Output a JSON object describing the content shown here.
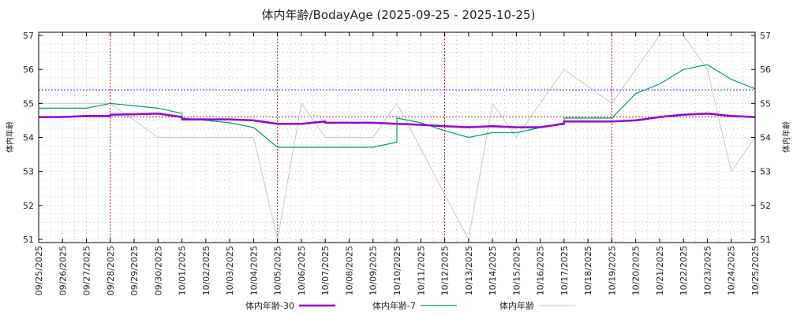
{
  "chart_data": {
    "type": "line",
    "title": "体内年齢/BodayAge (2025-09-25 - 2025-10-25)",
    "ylabel": "体内年齢",
    "y2label": "体内年齢",
    "ylim": [
      51,
      57
    ],
    "yticks": [
      51,
      52,
      53,
      54,
      55,
      56,
      57
    ],
    "categories": [
      "09/25/2025",
      "09/26/2025",
      "09/27/2025",
      "09/28/2025",
      "09/29/2025",
      "09/30/2025",
      "10/01/2025",
      "10/02/2025",
      "10/03/2025",
      "10/04/2025",
      "10/05/2025",
      "10/06/2025",
      "10/07/2025",
      "10/08/2025",
      "10/09/2025",
      "10/10/2025",
      "10/11/2025",
      "10/12/2025",
      "10/13/2025",
      "10/14/2025",
      "10/15/2025",
      "10/16/2025",
      "10/17/2025",
      "10/18/2025",
      "10/19/2025",
      "10/20/2025",
      "10/21/2025",
      "10/22/2025",
      "10/23/2025",
      "10/24/2025",
      "10/25/2025"
    ],
    "grid": true,
    "legend_placement": "bottom",
    "reference_lines": {
      "horizontal": [
        {
          "value": 55.4,
          "color": "#0000ff"
        },
        {
          "value": 54.6,
          "color": "#8b0000"
        }
      ],
      "vertical_dates": [
        "09/28/2025",
        "10/05/2025",
        "10/12/2025",
        "10/19/2025"
      ],
      "vertical_color": "#c00000"
    },
    "series": [
      {
        "name": "体内年齢-30",
        "color": "#9400d3",
        "width": 2.5,
        "points": [
          [
            0,
            54.6
          ],
          [
            1,
            54.6
          ],
          [
            2,
            54.63
          ],
          [
            3,
            54.63
          ],
          [
            3,
            54.67
          ],
          [
            4,
            54.68
          ],
          [
            5,
            54.7
          ],
          [
            6,
            54.6
          ],
          [
            6,
            54.53
          ],
          [
            7,
            54.53
          ],
          [
            8,
            54.53
          ],
          [
            9,
            54.5
          ],
          [
            10,
            54.4
          ],
          [
            11,
            54.4
          ],
          [
            12,
            54.47
          ],
          [
            12,
            54.43
          ],
          [
            13,
            54.43
          ],
          [
            14,
            54.43
          ],
          [
            15,
            54.4
          ],
          [
            16,
            54.37
          ],
          [
            17,
            54.33
          ],
          [
            18,
            54.3
          ],
          [
            19,
            54.33
          ],
          [
            20,
            54.3
          ],
          [
            21,
            54.3
          ],
          [
            22,
            54.4
          ],
          [
            22,
            54.47
          ],
          [
            23,
            54.47
          ],
          [
            24,
            54.47
          ],
          [
            25,
            54.5
          ],
          [
            26,
            54.6
          ],
          [
            27,
            54.67
          ],
          [
            28,
            54.7
          ],
          [
            29,
            54.63
          ],
          [
            30,
            54.6
          ]
        ]
      },
      {
        "name": "体内年齢-7",
        "color": "#009e73",
        "width": 1.2,
        "points": [
          [
            0,
            54.86
          ],
          [
            1,
            54.86
          ],
          [
            2,
            54.86
          ],
          [
            3,
            55.0
          ],
          [
            4,
            54.93
          ],
          [
            5,
            54.86
          ],
          [
            6,
            54.71
          ],
          [
            6,
            54.57
          ],
          [
            7,
            54.5
          ],
          [
            8,
            54.43
          ],
          [
            9,
            54.29
          ],
          [
            10,
            53.71
          ],
          [
            11,
            53.71
          ],
          [
            12,
            53.71
          ],
          [
            13,
            53.71
          ],
          [
            14,
            53.71
          ],
          [
            15,
            53.86
          ],
          [
            15,
            54.57
          ],
          [
            16,
            54.43
          ],
          [
            17,
            54.2
          ],
          [
            18,
            54.0
          ],
          [
            19,
            54.14
          ],
          [
            20,
            54.14
          ],
          [
            21,
            54.29
          ],
          [
            22,
            54.43
          ],
          [
            22,
            54.57
          ],
          [
            23,
            54.57
          ],
          [
            24,
            54.57
          ],
          [
            25,
            55.29
          ],
          [
            26,
            55.57
          ],
          [
            27,
            56.0
          ],
          [
            28,
            56.14
          ],
          [
            29,
            55.71
          ],
          [
            30,
            55.43
          ]
        ]
      },
      {
        "name": "体内年齢",
        "color": "#c8c8c8",
        "width": 1,
        "points": [
          [
            0,
            55
          ],
          [
            1,
            55
          ],
          [
            2,
            55
          ],
          [
            3,
            55
          ],
          [
            4,
            54.5
          ],
          [
            5,
            54
          ],
          [
            6,
            54
          ],
          [
            7,
            54
          ],
          [
            8,
            54
          ],
          [
            9,
            54
          ],
          [
            10,
            51
          ],
          [
            11,
            55
          ],
          [
            12,
            54
          ],
          [
            13,
            54
          ],
          [
            14,
            54
          ],
          [
            15,
            55
          ],
          [
            16,
            53.67
          ],
          [
            17,
            52.33
          ],
          [
            18,
            51
          ],
          [
            19,
            55
          ],
          [
            20,
            54
          ],
          [
            21,
            55
          ],
          [
            22,
            56
          ],
          [
            23,
            55.5
          ],
          [
            24,
            55
          ],
          [
            25,
            56
          ],
          [
            26,
            57
          ],
          [
            27,
            57
          ],
          [
            28,
            56
          ],
          [
            29,
            53
          ],
          [
            30,
            54
          ]
        ]
      }
    ]
  }
}
